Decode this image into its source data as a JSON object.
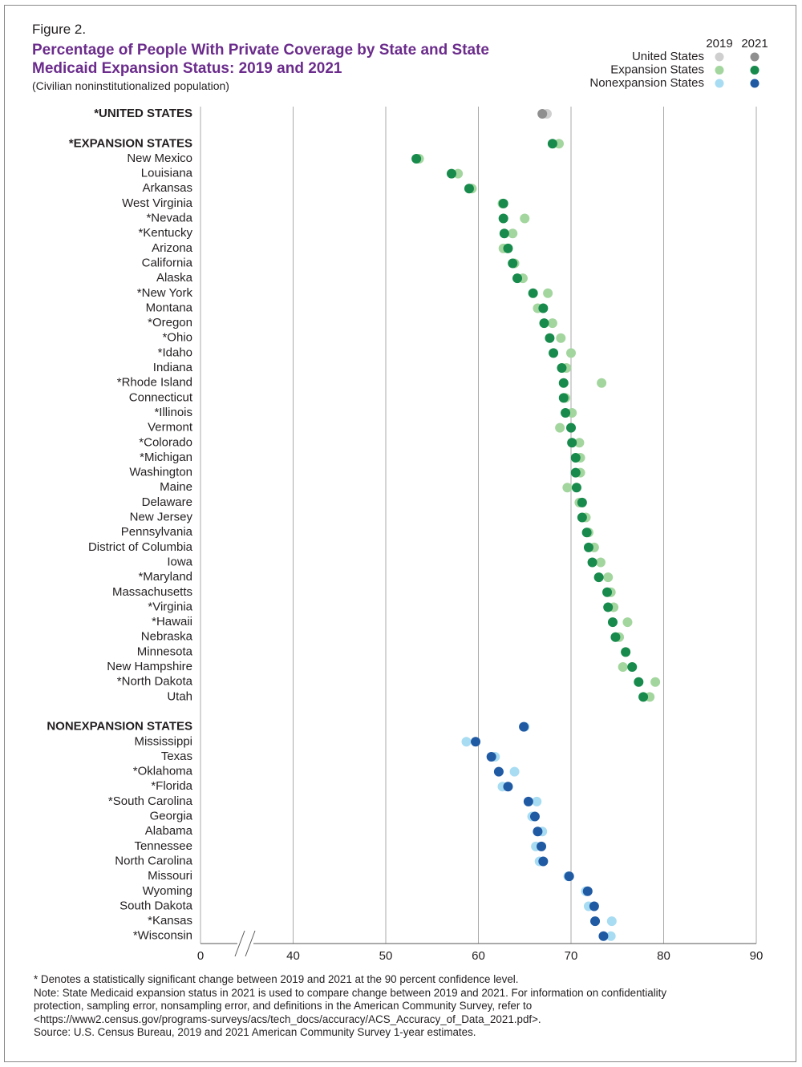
{
  "chart_data": {
    "type": "dot",
    "figure_label": "Figure 2.",
    "title": "Percentage of People With Private Coverage by State and State Medicaid Expansion Status:  2019 and 2021",
    "subtitle": "(Civilian noninstitutionalized population)",
    "legend_columns": [
      "2019",
      "2021"
    ],
    "groups": [
      {
        "name": "United States",
        "colors": [
          "#cfcfcf",
          "#8f8f8f"
        ],
        "categories": [
          "*UNITED STATES"
        ],
        "values": [
          [
            67.4
          ],
          [
            66.9
          ]
        ]
      },
      {
        "name": "Expansion States",
        "colors": [
          "#a3d69e",
          "#178a4c"
        ],
        "categories": [
          "*EXPANSION STATES",
          "New Mexico",
          "Louisiana",
          "Arkansas",
          "West Virginia",
          "*Nevada",
          "*Kentucky",
          "Arizona",
          "California",
          "Alaska",
          "*New York",
          "Montana",
          "*Oregon",
          "*Ohio",
          "*Idaho",
          "Indiana",
          "*Rhode Island",
          "Connecticut",
          "*Illinois",
          "Vermont",
          "*Colorado",
          "*Michigan",
          "Washington",
          "Maine",
          "Delaware",
          "New Jersey",
          "Pennsylvania",
          "District of Columbia",
          "Iowa",
          "*Maryland",
          "Massachusetts",
          "*Virginia",
          "*Hawaii",
          "Nebraska",
          "Minnesota",
          "New Hampshire",
          "*North Dakota",
          "Utah"
        ],
        "values": [
          [
            68.7,
            53.6,
            57.8,
            59.3,
            62.6,
            65.0,
            63.7,
            62.7,
            63.9,
            64.8,
            67.5,
            66.4,
            68.0,
            68.9,
            70.0,
            69.5,
            73.3,
            69.4,
            70.1,
            68.8,
            70.9,
            71.0,
            71.0,
            69.6,
            70.9,
            71.6,
            71.9,
            72.5,
            73.2,
            74.0,
            74.3,
            74.6,
            76.1,
            75.2,
            75.9,
            75.6,
            79.1,
            78.5
          ],
          [
            68.0,
            53.3,
            57.1,
            59.0,
            62.7,
            62.7,
            62.8,
            63.2,
            63.7,
            64.2,
            65.9,
            67.0,
            67.1,
            67.7,
            68.1,
            69.0,
            69.2,
            69.2,
            69.4,
            70.0,
            70.1,
            70.5,
            70.5,
            70.6,
            71.2,
            71.2,
            71.7,
            71.9,
            72.3,
            73.0,
            73.9,
            74.0,
            74.5,
            74.8,
            75.9,
            76.6,
            77.3,
            77.8
          ]
        ]
      },
      {
        "name": "Nonexpansion States",
        "colors": [
          "#a8dcf2",
          "#1f5aa3"
        ],
        "categories": [
          "NONEXPANSION STATES",
          "Mississippi",
          "Texas",
          "*Oklahoma",
          "*Florida",
          "*South Carolina",
          "Georgia",
          "Alabama",
          "Tennessee",
          "North Carolina",
          "Missouri",
          "Wyoming",
          "South Dakota",
          "*Kansas",
          "*Wisconsin"
        ],
        "values": [
          [
            65.0,
            58.7,
            61.8,
            63.9,
            62.6,
            66.3,
            65.8,
            66.9,
            66.2,
            66.6,
            69.7,
            71.6,
            71.9,
            74.4,
            74.3
          ],
          [
            64.9,
            59.7,
            61.4,
            62.2,
            63.2,
            65.4,
            66.1,
            66.4,
            66.8,
            67.0,
            69.8,
            71.8,
            72.5,
            72.6,
            73.5
          ]
        ]
      }
    ],
    "xlim": [
      0,
      90
    ],
    "axis_break": [
      0,
      30
    ],
    "xticks": [
      0,
      40,
      50,
      60,
      70,
      80,
      90
    ],
    "grid": true,
    "legend_position": "top-right",
    "notes": [
      "* Denotes a statistically significant change between 2019 and 2021 at the 90 percent confidence level.",
      "Note: State Medicaid expansion status in 2021 is used to compare change between 2019 and 2021. For information on confidentiality protection, sampling error, nonsampling error, and definitions in the American Community Survey, refer to <https://www2.census.gov/programs-surveys/acs/tech_docs/accuracy/ACS_Accuracy_of_Data_2021.pdf>.",
      "Source: U.S. Census Bureau, 2019 and 2021 American Community Survey 1-year estimates."
    ]
  }
}
